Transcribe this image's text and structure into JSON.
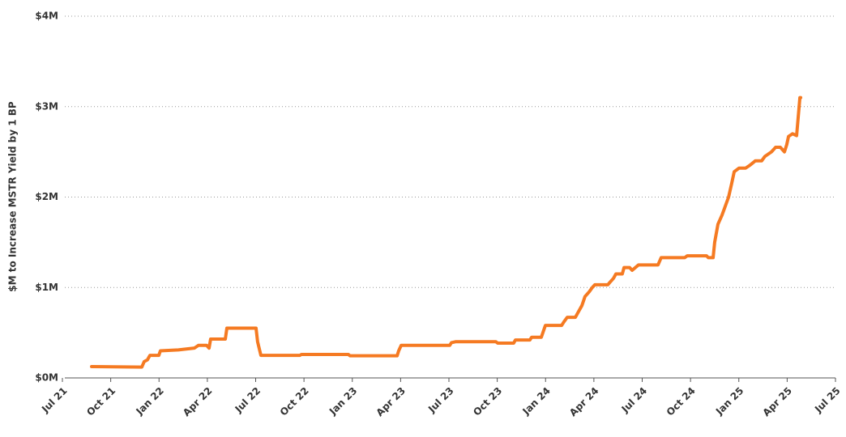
{
  "chart_data": {
    "type": "line",
    "y_label": "$M to Increase MSTR Yield by 1 BP",
    "xlim": [
      2021.5,
      2025.5
    ],
    "xticks": [
      {
        "value": 2021.5,
        "label": "Jul 21"
      },
      {
        "value": 2021.75,
        "label": "Oct 21"
      },
      {
        "value": 2022.0,
        "label": "Jan 22"
      },
      {
        "value": 2022.25,
        "label": "Apr 22"
      },
      {
        "value": 2022.5,
        "label": "Jul 22"
      },
      {
        "value": 2022.75,
        "label": "Oct 22"
      },
      {
        "value": 2023.0,
        "label": "Jan 23"
      },
      {
        "value": 2023.25,
        "label": "Apr 23"
      },
      {
        "value": 2023.5,
        "label": "Jul 23"
      },
      {
        "value": 2023.75,
        "label": "Oct 23"
      },
      {
        "value": 2024.0,
        "label": "Jan 24"
      },
      {
        "value": 2024.25,
        "label": "Apr 24"
      },
      {
        "value": 2024.5,
        "label": "Jul 24"
      },
      {
        "value": 2024.75,
        "label": "Oct 24"
      },
      {
        "value": 2025.0,
        "label": "Jan 25"
      },
      {
        "value": 2025.25,
        "label": "Apr 25"
      },
      {
        "value": 2025.5,
        "label": "Jul 25"
      }
    ],
    "ylim": [
      0,
      4
    ],
    "yticks": [
      {
        "value": 0,
        "label": "$0M"
      },
      {
        "value": 1,
        "label": "$1M"
      },
      {
        "value": 2,
        "label": "$2M"
      },
      {
        "value": 3,
        "label": "$3M"
      },
      {
        "value": 4,
        "label": "$4M"
      }
    ],
    "grid": true,
    "x": [
      2021.651,
      2021.911,
      2021.923,
      2021.94,
      2021.953,
      2021.999,
      2022.007,
      2022.1,
      2022.183,
      2022.204,
      2022.246,
      2022.259,
      2022.267,
      2022.343,
      2022.351,
      2022.502,
      2022.51,
      2022.527,
      2022.729,
      2022.737,
      2022.98,
      2022.988,
      2023.232,
      2023.24,
      2023.253,
      2023.504,
      2023.513,
      2023.534,
      2023.743,
      2023.752,
      2023.835,
      2023.844,
      2023.919,
      2023.928,
      2023.978,
      2023.986,
      2023.999,
      2024.083,
      2024.095,
      2024.112,
      2024.154,
      2024.167,
      2024.188,
      2024.204,
      2024.225,
      2024.242,
      2024.255,
      2024.322,
      2024.334,
      2024.351,
      2024.364,
      2024.397,
      2024.406,
      2024.435,
      2024.448,
      2024.481,
      2024.582,
      2024.598,
      2024.72,
      2024.733,
      2024.833,
      2024.842,
      2024.867,
      2024.875,
      2024.892,
      2024.913,
      2024.93,
      2024.947,
      2024.963,
      2024.976,
      2025.001,
      2025.035,
      2025.056,
      2025.085,
      2025.118,
      2025.135,
      2025.169,
      2025.19,
      2025.215,
      2025.236,
      2025.248,
      2025.257,
      2025.278,
      2025.299,
      2025.316,
      2025.32
    ],
    "series": [
      {
        "color": "#f57a22",
        "values": [
          0.125,
          0.12,
          0.18,
          0.2,
          0.25,
          0.25,
          0.3,
          0.31,
          0.33,
          0.36,
          0.36,
          0.33,
          0.43,
          0.43,
          0.55,
          0.55,
          0.4,
          0.25,
          0.25,
          0.26,
          0.26,
          0.245,
          0.245,
          0.3,
          0.36,
          0.36,
          0.39,
          0.4,
          0.4,
          0.385,
          0.385,
          0.42,
          0.42,
          0.45,
          0.45,
          0.5,
          0.58,
          0.58,
          0.62,
          0.67,
          0.67,
          0.72,
          0.8,
          0.9,
          0.95,
          1.0,
          1.03,
          1.03,
          1.06,
          1.1,
          1.15,
          1.15,
          1.22,
          1.22,
          1.19,
          1.25,
          1.25,
          1.33,
          1.33,
          1.35,
          1.35,
          1.33,
          1.33,
          1.5,
          1.7,
          1.8,
          1.9,
          2.0,
          2.15,
          2.28,
          2.32,
          2.32,
          2.35,
          2.4,
          2.4,
          2.45,
          2.5,
          2.55,
          2.55,
          2.5,
          2.58,
          2.67,
          2.7,
          2.68,
          3.1,
          3.1
        ]
      }
    ]
  }
}
